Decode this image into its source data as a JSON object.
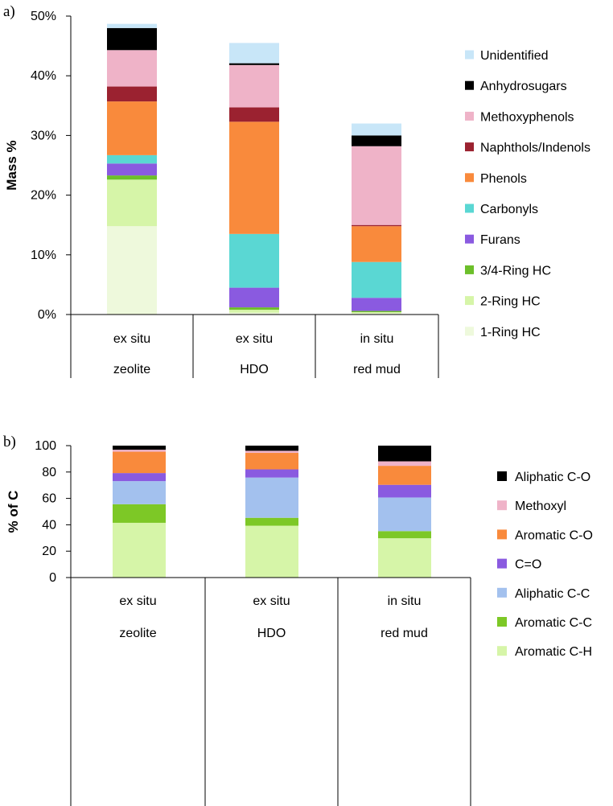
{
  "chart_data": [
    {
      "panel": "a)",
      "type": "bar",
      "stacked": true,
      "ylabel": "Mass %",
      "ylim": [
        0,
        50
      ],
      "yticks": [
        "0%",
        "10%",
        "20%",
        "30%",
        "40%",
        "50%"
      ],
      "categories": [
        [
          "ex situ",
          "zeolite"
        ],
        [
          "ex situ",
          "HDO"
        ],
        [
          "in situ",
          "red mud"
        ]
      ],
      "legend_position": "right",
      "series": [
        {
          "name": "1-Ring HC",
          "color": "#eef9dc",
          "values": [
            14.8,
            0.3,
            0.2
          ]
        },
        {
          "name": "2-Ring HC",
          "color": "#d6f5a8",
          "values": [
            7.8,
            0.5,
            0.2
          ]
        },
        {
          "name": "3/4-Ring HC",
          "color": "#6cbf2a",
          "values": [
            0.7,
            0.4,
            0.2
          ]
        },
        {
          "name": "Furans",
          "color": "#8a5ae0",
          "values": [
            2.0,
            3.3,
            2.2
          ]
        },
        {
          "name": "Carbonyls",
          "color": "#5ad7d3",
          "values": [
            1.4,
            9.0,
            6.0
          ]
        },
        {
          "name": "Phenols",
          "color": "#f98a3c",
          "values": [
            9.0,
            18.8,
            6.0
          ]
        },
        {
          "name": "Naphthols/Indenols",
          "color": "#9b2230",
          "values": [
            2.5,
            2.4,
            0.2
          ]
        },
        {
          "name": "Methoxyphenols",
          "color": "#efb3c8",
          "values": [
            6.1,
            7.1,
            13.2
          ]
        },
        {
          "name": "Anhydrosugars",
          "color": "#000000",
          "values": [
            3.7,
            0.3,
            1.8
          ]
        },
        {
          "name": "Unidentified",
          "color": "#c8e6f8",
          "values": [
            0.7,
            3.4,
            2.0
          ]
        }
      ]
    },
    {
      "panel": "b)",
      "type": "bar",
      "stacked": true,
      "ylabel": "% of C",
      "ylim": [
        0,
        100
      ],
      "yticks": [
        "0",
        "20",
        "40",
        "60",
        "80",
        "100"
      ],
      "categories": [
        [
          "ex situ",
          "zeolite"
        ],
        [
          "ex situ",
          "HDO"
        ],
        [
          "in situ",
          "red mud"
        ]
      ],
      "legend_position": "right",
      "series": [
        {
          "name": "Aromatic C-H",
          "color": "#d6f5a8",
          "values": [
            41.5,
            39.3,
            29.8
          ]
        },
        {
          "name": "Aromatic C-C",
          "color": "#7dc826",
          "values": [
            14.1,
            6.0,
            5.4
          ]
        },
        {
          "name": "Aliphatic  C-C",
          "color": "#a3c1ee",
          "values": [
            17.5,
            30.5,
            25.5
          ]
        },
        {
          "name": "C=O",
          "color": "#8a5ae0",
          "values": [
            6.1,
            6.2,
            9.6
          ]
        },
        {
          "name": "Aromatic C-O",
          "color": "#f98a3c",
          "values": [
            16.2,
            12.5,
            14.4
          ]
        },
        {
          "name": "Methoxyl",
          "color": "#efb3c8",
          "values": [
            1.5,
            1.6,
            3.4
          ]
        },
        {
          "name": "Aliphatic  C-O",
          "color": "#000000",
          "values": [
            3.1,
            3.9,
            11.9
          ]
        }
      ]
    }
  ]
}
